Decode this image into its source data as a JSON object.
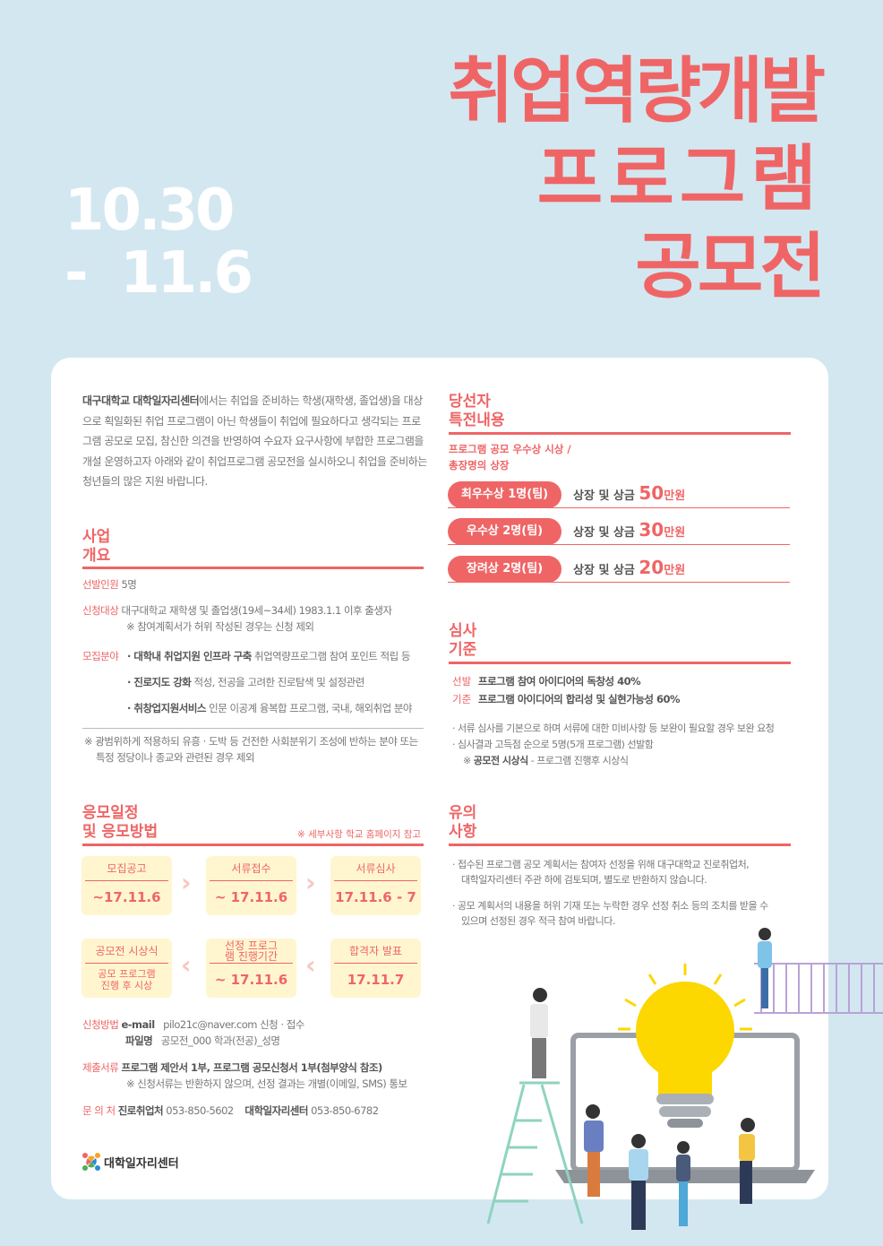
{
  "header": {
    "title_lines": [
      "취업역량개발",
      "프로그램",
      "공모전"
    ],
    "date_lines": [
      "10.30",
      "-  11.6"
    ]
  },
  "intro": {
    "org": "대구대학교 대학일자리센터",
    "text": "에서는 취업을 준비하는 학생(재학생, 졸업생)을 대상으로 획일화된 취업 프로그램이 아닌 학생들이 취업에 필요하다고 생각되는 프로그램 공모로 모집, 참신한 의견을 반영하여 수요자 요구사항에 부합한 프로그램을 개설 운영하고자 아래와 같이 취업프로그램 공모전을 실시하오니 취업을 준비하는 청년들의 많은 지원 바랍니다."
  },
  "overview": {
    "heading": [
      "사업",
      "개요"
    ],
    "selection_label": "선발인원",
    "selection_value": "5명",
    "target_label": "신청대상",
    "target_value": "대구대학교 재학생 및 졸업생(19세~34세) 1983.1.1 이후 출생자",
    "target_note": "※ 참여계획서가 허위 작성된 경우는 신청 제외",
    "field_label": "모집분야",
    "fields": [
      {
        "name": "· 대학내 취업지원 인프라 구축",
        "desc": "취업역량프로그램 참여 포인트 적립 등"
      },
      {
        "name": "· 진로지도 강화",
        "desc": "적성, 전공을 고려한 진로탐색 및 설정관련"
      },
      {
        "name": "· 취창업지원서비스",
        "desc": "인문 이공계 융복합 프로그램, 국내, 해외취업 분야"
      }
    ],
    "footnote": [
      "※ 광범위하게 적용하되 유흥 · 도박 등 건전한 사회분위기 조성에 반하는 분야 또는",
      "특정 정당이나 종교와 관련된 경우 제외"
    ]
  },
  "schedule": {
    "heading": [
      "응모일정",
      "및 응모방법"
    ],
    "note": "※ 세부사항 학교 홈페이지 참고",
    "steps": [
      {
        "title": "모집공고",
        "value": "~17.11.6"
      },
      {
        "title": "서류접수",
        "value": "~ 17.11.6"
      },
      {
        "title": "서류심사",
        "value": "17.11.6 - 7"
      },
      {
        "title": "합격자 발표",
        "value": "17.11.7"
      },
      {
        "title": "선정 프로그램 진행기간",
        "value": "~ 17.11.6"
      },
      {
        "title": "공모전 시상식",
        "value": "공모 프로그램 진행 후 시상"
      }
    ]
  },
  "apply": {
    "method_label": "신청방법",
    "email_label": "e-mail",
    "email_value": "pilo21c@naver.com 신청 · 접수",
    "file_label": "파일명",
    "file_value": "공모전_000 학과(전공)_성명",
    "docs_label": "제출서류",
    "docs_value": "프로그램 제안서 1부, 프로그램 공모신청서 1부(첨부양식 참조)",
    "docs_note": "※ 신청서류는 반환하지 않으며, 선정 결과는 개별(이메일, SMS) 통보",
    "contact_label": "문 의 처",
    "contact1_name": "진로취업처",
    "contact1_phone": "053-850-5602",
    "contact2_name": "대학일자리센터",
    "contact2_phone": "053-850-6782"
  },
  "logo": {
    "text": "대학일자리센터"
  },
  "prizes": {
    "heading": [
      "당선자",
      "특전내용"
    ],
    "sub": [
      "프로그램 공모 우수상 시상 /",
      "총장명의 상장"
    ],
    "items": [
      {
        "label": "최우수상 1명(팀)",
        "text": "상장 및 상금 ",
        "amount": "50",
        "unit": "만원"
      },
      {
        "label": "우수상 2명(팀)",
        "text": "상장 및 상금 ",
        "amount": "30",
        "unit": "만원"
      },
      {
        "label": "장려상 2명(팀)",
        "text": "상장 및 상금 ",
        "amount": "20",
        "unit": "만원"
      }
    ]
  },
  "criteria": {
    "heading": [
      "심사",
      "기준"
    ],
    "label": [
      "선발",
      "기준"
    ],
    "items": [
      "프로그램 참여 아이디어의 독창성 40%",
      "프로그램 아이디어의 합리성 및 실현가능성 60%"
    ],
    "notes": [
      "· 서류 심사를 기본으로 하며 서류에 대한 미비사항 등 보완이 필요할 경우 보완 요청",
      "· 심사결과 고득점 순으로 5명(5개 프로그램) 선발함"
    ],
    "ceremony_label": "공모전 시상식",
    "ceremony_text": "-  프로그램 진행후 시상식"
  },
  "notice": {
    "heading": [
      "유의",
      "사항"
    ],
    "items": [
      [
        "· 접수된 프로그램 공모 계획서는 참여자 선정을 위해 대구대학교 진로취업처,",
        "대학일자리센터 주관 하에 검토되며, 별도로 반환하지 않습니다."
      ],
      [
        "· 공모 계획서의 내용을 허위 기재 또는 누락한 경우 선정 취소 등의 조치를 받을 수",
        "있으며 선정된 경우 적극 참여 바랍니다."
      ]
    ]
  },
  "colors": {
    "accent": "#ef6566",
    "background": "#d3e7f1",
    "box": "#fff6cf",
    "bulb": "#fcd700"
  }
}
